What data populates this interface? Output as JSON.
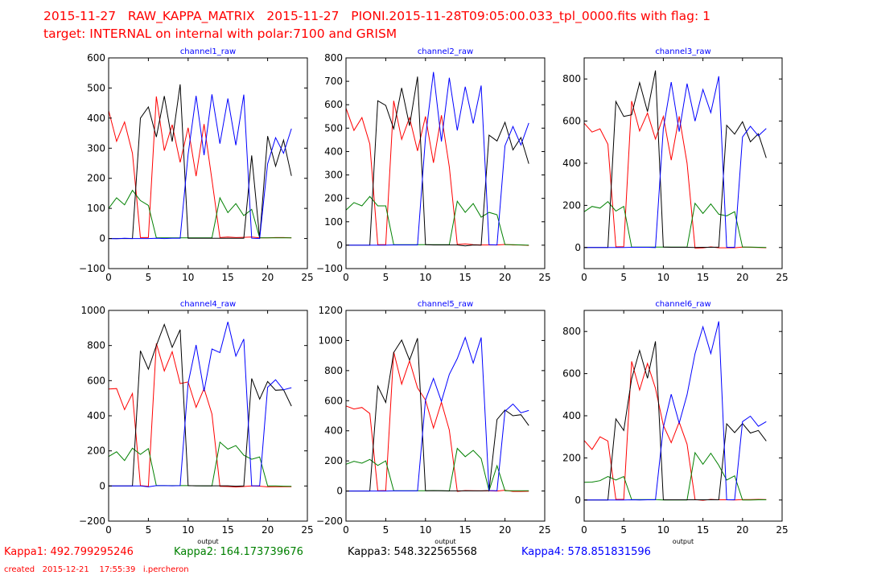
{
  "header": {
    "line1": "2015-11-27   RAW_KAPPA_MATRIX   2015-11-27   PIONI.2015-11-28T09:05:00.033_tpl_0000.fits with flag: 1",
    "line2": "target: INTERNAL on internal with polar:7100 and GRISM"
  },
  "footer": {
    "kappas": [
      {
        "label": "Kappa1: 492.799295246",
        "color": "#ff0000"
      },
      {
        "label": "Kappa2: 164.173739676",
        "color": "#008000"
      },
      {
        "label": "Kappa3: 548.322565568",
        "color": "#000000"
      },
      {
        "label": "Kappa4: 578.851831596",
        "color": "#0000ff"
      }
    ],
    "created": "created   2015-12-21    17:55:39   i.percheron"
  },
  "series_colors": {
    "red": "#ff0000",
    "green": "#008000",
    "black": "#000000",
    "blue": "#0000ff"
  },
  "chart_data": [
    {
      "type": "line",
      "title": "channel1_raw",
      "xlabel": "",
      "ylabel": "",
      "xlim": [
        0,
        25
      ],
      "ylim": [
        -100,
        600
      ],
      "xticks": [
        0,
        5,
        10,
        15,
        20,
        25
      ],
      "yticks": [
        -100,
        0,
        100,
        200,
        300,
        400,
        500,
        600
      ],
      "x": [
        0,
        1,
        2,
        3,
        4,
        5,
        6,
        7,
        8,
        9,
        10,
        11,
        12,
        13,
        14,
        15,
        16,
        17,
        18,
        19,
        20,
        21,
        22,
        23
      ],
      "series": [
        {
          "name": "red",
          "values": [
            425,
            323,
            387,
            283,
            3,
            3,
            472,
            292,
            378,
            253,
            368,
            207,
            380,
            195,
            3,
            5,
            3,
            4,
            5,
            2,
            2,
            3,
            3,
            2
          ]
        },
        {
          "name": "green",
          "values": [
            100,
            135,
            112,
            160,
            126,
            110,
            2,
            2,
            2,
            2,
            2,
            2,
            2,
            2,
            135,
            86,
            116,
            76,
            97,
            2,
            2,
            2,
            2,
            2
          ]
        },
        {
          "name": "black",
          "values": [
            0,
            0,
            0,
            0,
            400,
            437,
            337,
            473,
            322,
            512,
            1,
            1,
            1,
            1,
            1,
            1,
            1,
            1,
            276,
            1,
            340,
            240,
            327,
            208
          ]
        },
        {
          "name": "blue",
          "values": [
            0,
            -1,
            1,
            0,
            0,
            0,
            1,
            0,
            1,
            1,
            280,
            474,
            277,
            479,
            315,
            465,
            310,
            478,
            1,
            0,
            248,
            335,
            283,
            365
          ]
        }
      ]
    },
    {
      "type": "line",
      "title": "channel2_raw",
      "xlabel": "",
      "ylabel": "",
      "xlim": [
        0,
        25
      ],
      "ylim": [
        -100,
        800
      ],
      "xticks": [
        0,
        5,
        10,
        15,
        20,
        25
      ],
      "yticks": [
        -100,
        0,
        100,
        200,
        300,
        400,
        500,
        600,
        700,
        800
      ],
      "x": [
        0,
        1,
        2,
        3,
        4,
        5,
        6,
        7,
        8,
        9,
        10,
        11,
        12,
        13,
        14,
        15,
        16,
        17,
        18,
        19,
        20,
        21,
        22,
        23
      ],
      "series": [
        {
          "name": "red",
          "values": [
            585,
            490,
            545,
            432,
            2,
            2,
            617,
            452,
            545,
            403,
            550,
            352,
            555,
            335,
            3,
            5,
            2,
            1,
            1,
            1,
            3,
            1,
            1,
            -1
          ]
        },
        {
          "name": "green",
          "values": [
            150,
            182,
            168,
            208,
            168,
            168,
            2,
            2,
            2,
            2,
            2,
            2,
            2,
            2,
            188,
            140,
            178,
            120,
            140,
            130,
            2,
            2,
            1,
            0
          ]
        },
        {
          "name": "black",
          "values": [
            0,
            0,
            0,
            0,
            617,
            597,
            497,
            672,
            510,
            720,
            2,
            1,
            1,
            1,
            1,
            -3,
            1,
            0,
            470,
            445,
            525,
            407,
            460,
            348
          ]
        },
        {
          "name": "blue",
          "values": [
            0,
            0,
            0,
            0,
            0,
            0,
            1,
            1,
            1,
            1,
            460,
            740,
            443,
            715,
            490,
            677,
            520,
            682,
            2,
            1,
            425,
            507,
            428,
            522
          ]
        }
      ]
    },
    {
      "type": "line",
      "title": "channel3_raw",
      "xlabel": "",
      "ylabel": "",
      "xlim": [
        0,
        25
      ],
      "ylim": [
        -100,
        900
      ],
      "xticks": [
        0,
        5,
        10,
        15,
        20,
        25
      ],
      "yticks": [
        0,
        200,
        400,
        600,
        800
      ],
      "x": [
        0,
        1,
        2,
        3,
        4,
        5,
        6,
        7,
        8,
        9,
        10,
        11,
        12,
        13,
        14,
        15,
        16,
        17,
        18,
        19,
        20,
        21,
        22,
        23
      ],
      "series": [
        {
          "name": "red",
          "values": [
            590,
            548,
            563,
            490,
            3,
            4,
            695,
            553,
            638,
            515,
            622,
            415,
            623,
            400,
            -3,
            -2,
            3,
            -1,
            -1,
            -1,
            2,
            1,
            0,
            -1
          ]
        },
        {
          "name": "green",
          "values": [
            170,
            195,
            187,
            218,
            173,
            195,
            2,
            2,
            2,
            2,
            2,
            2,
            2,
            2,
            210,
            162,
            207,
            158,
            150,
            170,
            2,
            2,
            1,
            0
          ]
        },
        {
          "name": "black",
          "values": [
            0,
            0,
            0,
            0,
            693,
            622,
            630,
            783,
            645,
            840,
            2,
            1,
            1,
            1,
            0,
            1,
            1,
            2,
            580,
            538,
            597,
            502,
            540,
            425
          ]
        },
        {
          "name": "blue",
          "values": [
            0,
            0,
            0,
            0,
            0,
            0,
            1,
            1,
            1,
            0,
            565,
            785,
            550,
            778,
            600,
            750,
            640,
            813,
            1,
            1,
            525,
            575,
            530,
            565
          ]
        }
      ]
    },
    {
      "type": "line",
      "title": "channel4_raw",
      "xlabel": "output",
      "ylabel": "",
      "xlim": [
        0,
        25
      ],
      "ylim": [
        -200,
        1000
      ],
      "xticks": [
        0,
        5,
        10,
        15,
        20,
        25
      ],
      "yticks": [
        -200,
        0,
        200,
        400,
        600,
        800,
        1000
      ],
      "x": [
        0,
        1,
        2,
        3,
        4,
        5,
        6,
        7,
        8,
        9,
        10,
        11,
        12,
        13,
        14,
        15,
        16,
        17,
        18,
        19,
        20,
        21,
        22,
        23
      ],
      "series": [
        {
          "name": "red",
          "values": [
            552,
            555,
            435,
            527,
            2,
            -2,
            812,
            655,
            765,
            583,
            593,
            448,
            555,
            410,
            -2,
            -3,
            -6,
            -3,
            0,
            -1,
            -5,
            -4,
            -4,
            -4
          ]
        },
        {
          "name": "green",
          "values": [
            168,
            195,
            145,
            215,
            180,
            213,
            2,
            2,
            2,
            2,
            2,
            1,
            0,
            0,
            250,
            210,
            230,
            175,
            152,
            165,
            0,
            0,
            -1,
            -2
          ]
        },
        {
          "name": "black",
          "values": [
            0,
            0,
            0,
            0,
            770,
            665,
            800,
            920,
            790,
            890,
            2,
            1,
            1,
            1,
            1,
            1,
            -1,
            0,
            612,
            495,
            595,
            545,
            548,
            455
          ]
        },
        {
          "name": "blue",
          "values": [
            0,
            0,
            0,
            0,
            0,
            -5,
            2,
            2,
            1,
            2,
            585,
            803,
            540,
            780,
            760,
            935,
            740,
            837,
            1,
            1,
            562,
            605,
            548,
            560
          ]
        }
      ]
    },
    {
      "type": "line",
      "title": "channel5_raw",
      "xlabel": "output",
      "ylabel": "",
      "xlim": [
        0,
        25
      ],
      "ylim": [
        -200,
        1200
      ],
      "xticks": [
        0,
        5,
        10,
        15,
        20,
        25
      ],
      "yticks": [
        -200,
        0,
        200,
        400,
        600,
        800,
        1000,
        1200
      ],
      "x": [
        0,
        1,
        2,
        3,
        4,
        5,
        6,
        7,
        8,
        9,
        10,
        11,
        12,
        13,
        14,
        15,
        16,
        17,
        18,
        19,
        20,
        21,
        22,
        23
      ],
      "series": [
        {
          "name": "red",
          "values": [
            565,
            545,
            555,
            515,
            2,
            3,
            925,
            710,
            865,
            685,
            605,
            418,
            590,
            405,
            -3,
            3,
            2,
            1,
            1,
            0,
            5,
            -3,
            -3,
            -2
          ]
        },
        {
          "name": "green",
          "values": [
            178,
            197,
            185,
            210,
            170,
            200,
            2,
            2,
            2,
            2,
            2,
            3,
            2,
            0,
            283,
            228,
            270,
            215,
            2,
            168,
            2,
            2,
            2,
            2
          ]
        },
        {
          "name": "black",
          "values": [
            0,
            0,
            0,
            0,
            697,
            588,
            920,
            1003,
            870,
            1015,
            2,
            2,
            2,
            1,
            1,
            1,
            1,
            1,
            3,
            475,
            538,
            500,
            507,
            435
          ]
        },
        {
          "name": "blue",
          "values": [
            0,
            0,
            0,
            0,
            0,
            0,
            1,
            1,
            1,
            1,
            605,
            748,
            595,
            775,
            880,
            1020,
            850,
            1020,
            3,
            2,
            530,
            578,
            520,
            535
          ]
        }
      ]
    },
    {
      "type": "line",
      "title": "channel6_raw",
      "xlabel": "output",
      "ylabel": "",
      "xlim": [
        0,
        25
      ],
      "ylim": [
        -100,
        900
      ],
      "xticks": [
        0,
        5,
        10,
        15,
        20,
        25
      ],
      "yticks": [
        0,
        200,
        400,
        600,
        800
      ],
      "x": [
        0,
        1,
        2,
        3,
        4,
        5,
        6,
        7,
        8,
        9,
        10,
        11,
        12,
        13,
        14,
        15,
        16,
        17,
        18,
        19,
        20,
        21,
        22,
        23
      ],
      "series": [
        {
          "name": "red",
          "values": [
            283,
            240,
            300,
            280,
            3,
            3,
            658,
            522,
            648,
            530,
            355,
            272,
            370,
            265,
            2,
            -1,
            3,
            1,
            1,
            0,
            2,
            2,
            3,
            2
          ]
        },
        {
          "name": "green",
          "values": [
            84,
            85,
            92,
            112,
            95,
            112,
            2,
            2,
            2,
            2,
            0,
            0,
            0,
            0,
            225,
            170,
            222,
            165,
            95,
            115,
            0,
            0,
            1,
            1
          ]
        },
        {
          "name": "black",
          "values": [
            0,
            0,
            0,
            0,
            385,
            330,
            575,
            710,
            578,
            753,
            1,
            1,
            1,
            1,
            1,
            1,
            1,
            1,
            362,
            320,
            363,
            318,
            330,
            280
          ]
        },
        {
          "name": "blue",
          "values": [
            0,
            0,
            0,
            0,
            0,
            0,
            1,
            0,
            1,
            1,
            345,
            502,
            365,
            500,
            695,
            822,
            695,
            848,
            1,
            1,
            372,
            398,
            350,
            372
          ]
        }
      ]
    }
  ]
}
